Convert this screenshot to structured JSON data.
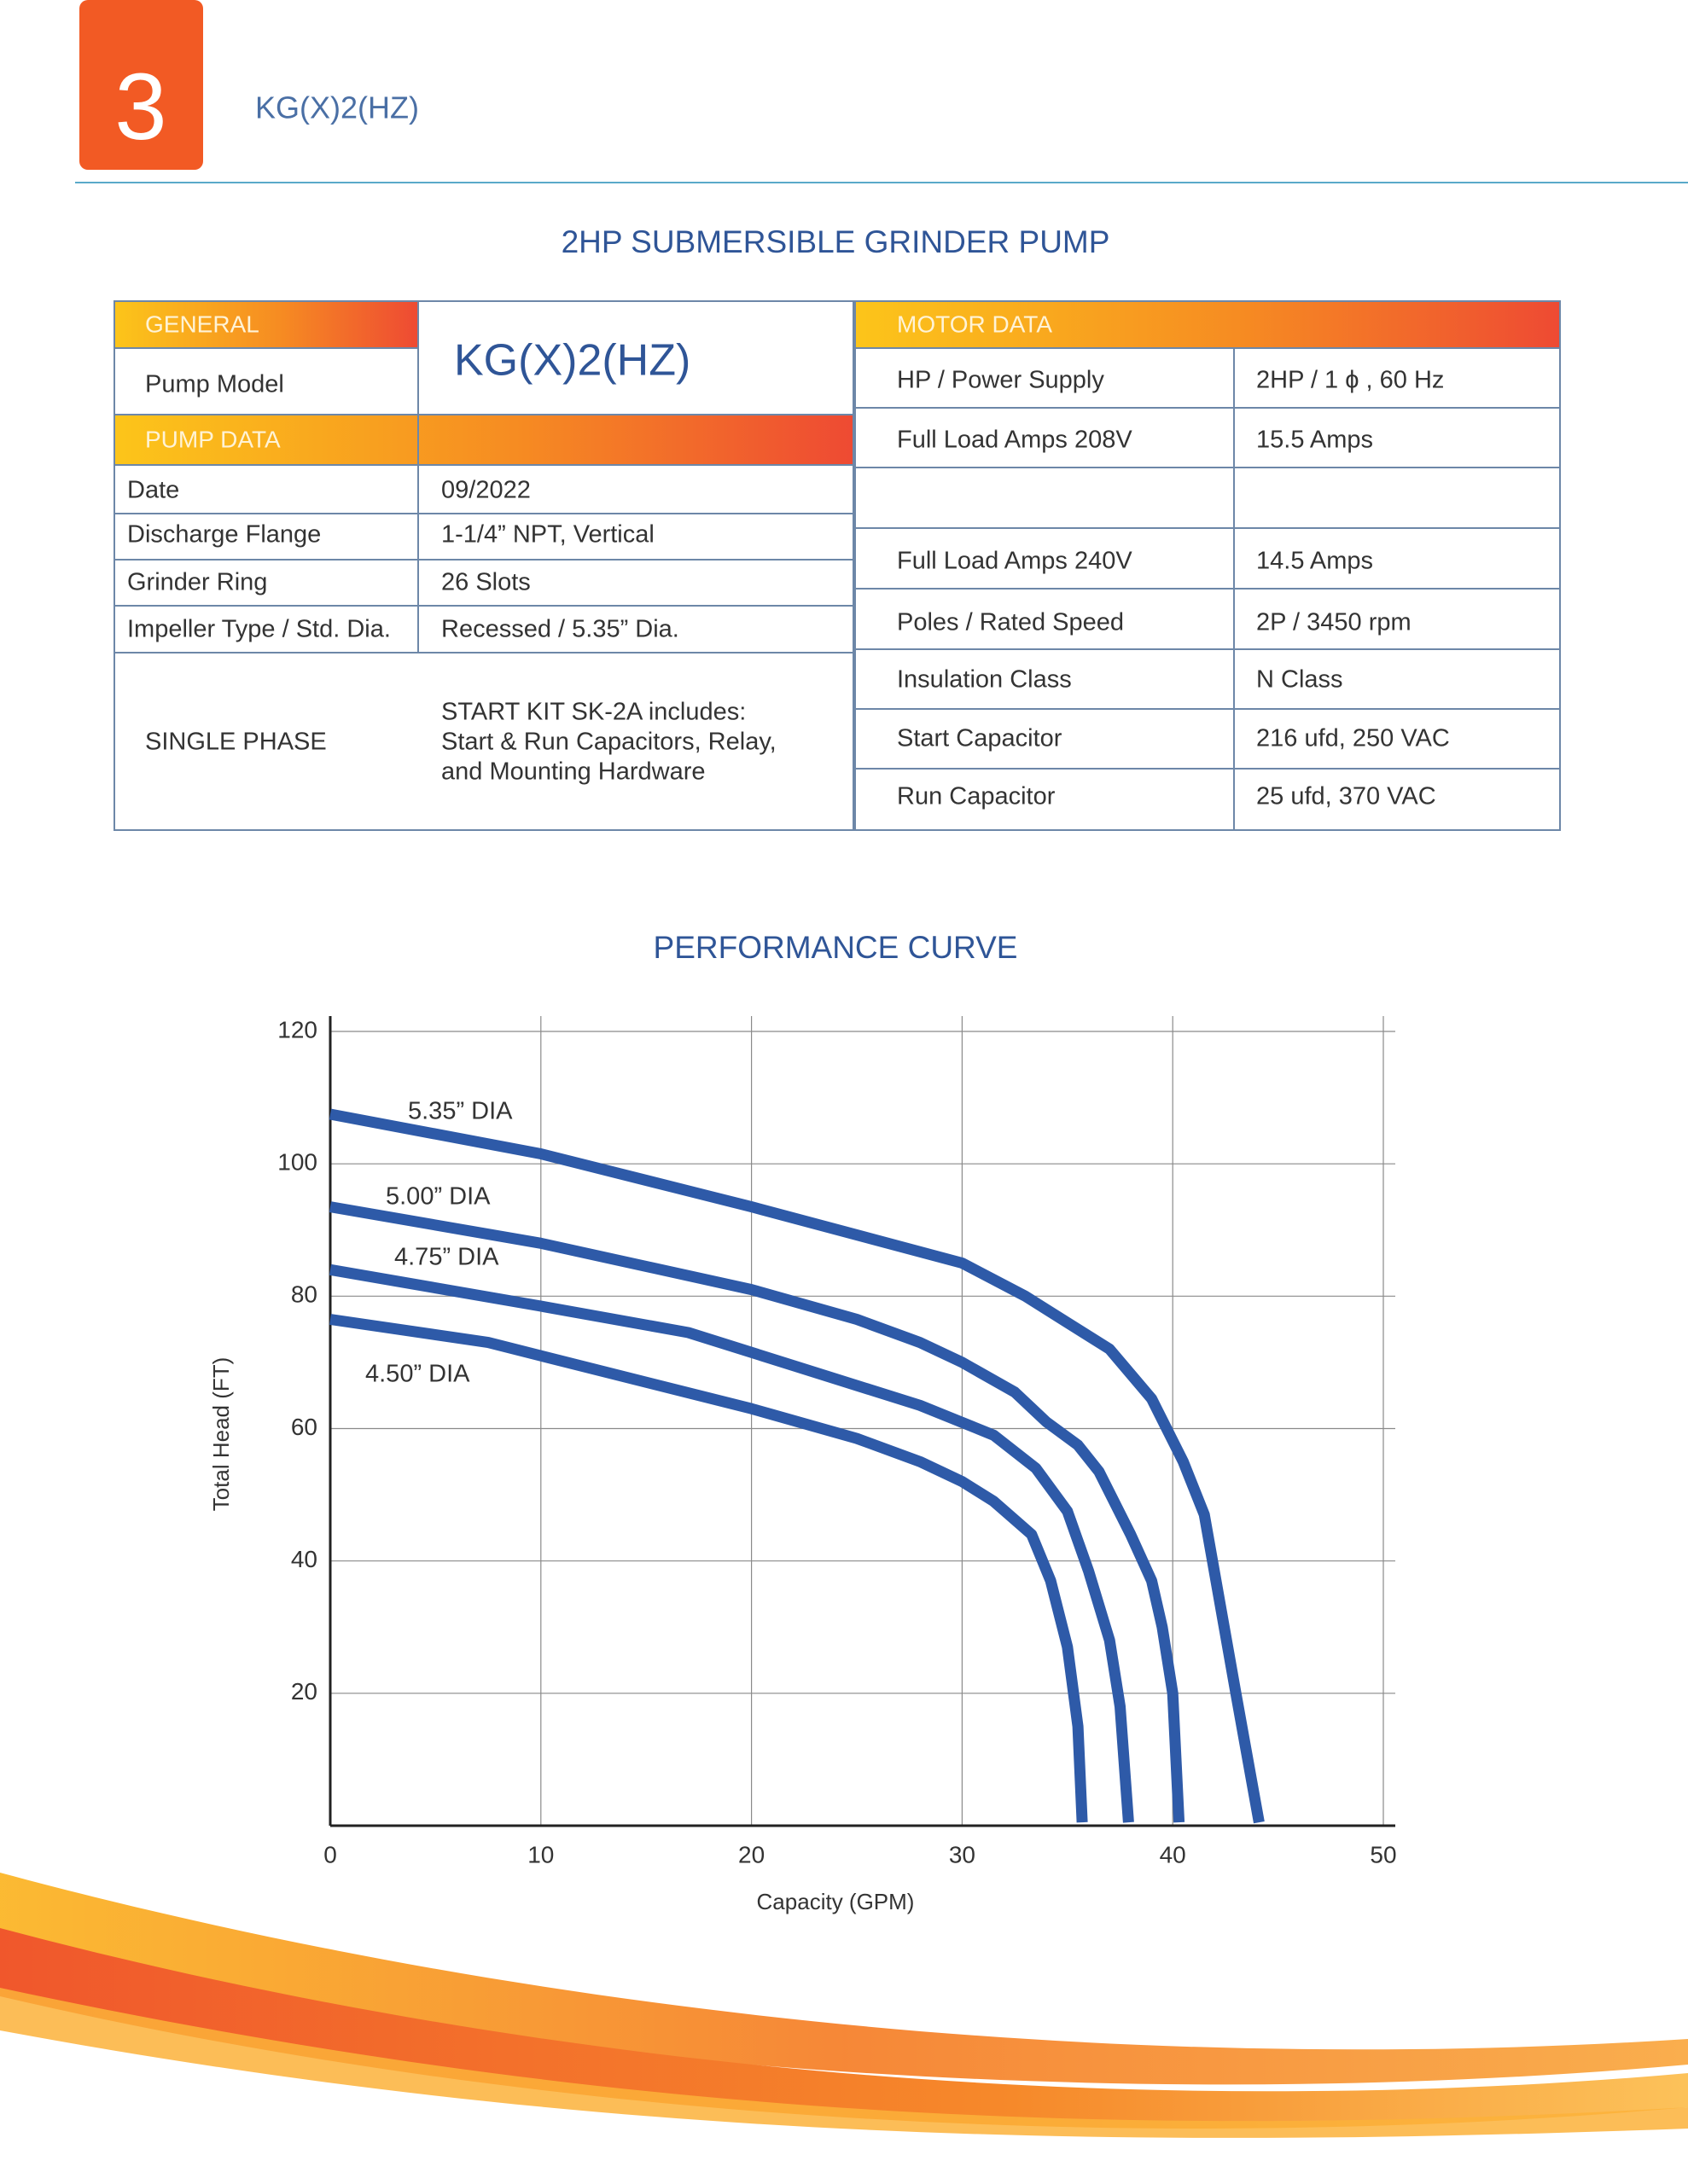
{
  "header": {
    "number": "3",
    "model": "KG(X)2(HZ)"
  },
  "title": "2HP SUBMERSIBLE GRINDER PUMP",
  "general": {
    "label": "GENERAL",
    "pump_model_label": "Pump Model",
    "pump_model": "KG(X)2(HZ)"
  },
  "pump_data": {
    "label": "PUMP DATA",
    "rows": [
      [
        "Date",
        "09/2022"
      ],
      [
        "Discharge Flange",
        "1-1/4” NPT, Vertical"
      ],
      [
        "Grinder Ring",
        "26 Slots"
      ],
      [
        "Impeller Type / Std. Dia.",
        "Recessed / 5.35” Dia."
      ]
    ],
    "single_phase_label": "SINGLE PHASE",
    "start_kit": [
      "START KIT SK-2A includes:",
      "Start & Run Capacitors, Relay,",
      "and Mounting Hardware"
    ]
  },
  "motor_data": {
    "label": "MOTOR DATA",
    "rows": [
      [
        "HP / Power Supply",
        "2HP / 1 ϕ , 60 Hz"
      ],
      [
        "Full Load Amps 208V",
        "15.5 Amps"
      ],
      [
        "Full Load Amps 240V",
        "14.5 Amps"
      ],
      [
        "Poles / Rated Speed",
        "2P / 3450 rpm"
      ],
      [
        "Insulation Class",
        "N Class"
      ],
      [
        "Start Capacitor",
        "216 ufd, 250 VAC"
      ],
      [
        "Run Capacitor",
        "25 ufd, 370 VAC"
      ]
    ]
  },
  "chart_data": {
    "type": "line",
    "title": "PERFORMANCE CURVE",
    "x_label": "Capacity (GPM)",
    "y_label": "Total Head (FT)",
    "xlim": [
      0,
      50
    ],
    "ylim": [
      0,
      120
    ],
    "xticks": [
      0,
      10,
      20,
      30,
      40,
      50
    ],
    "yticks": [
      20,
      40,
      60,
      80,
      100,
      120
    ],
    "grid": true,
    "series": [
      {
        "name": "5.35” DIA",
        "color": "#2e5aa8",
        "x": [
          0,
          10,
          20,
          30,
          33,
          35,
          37,
          39,
          40.5,
          41.5,
          43,
          44.1
        ],
        "y": [
          107.5,
          101.5,
          93.5,
          85,
          80,
          76,
          72,
          64.5,
          55,
          47,
          20,
          0.5
        ]
      },
      {
        "name": "5.00” DIA",
        "color": "#2e5aa8",
        "x": [
          0,
          10,
          20,
          25,
          28,
          30,
          32.5,
          34,
          35.5,
          36.5,
          38,
          39,
          39.5,
          40,
          40.3
        ],
        "y": [
          93.5,
          88,
          81,
          76.5,
          73,
          70,
          65.5,
          61,
          57.5,
          53.5,
          44,
          37,
          30,
          20,
          0.5
        ]
      },
      {
        "name": "4.75” DIA",
        "color": "#2e5aa8",
        "x": [
          0,
          10,
          17,
          22,
          28,
          31.5,
          33.5,
          35,
          36,
          37,
          37.5,
          37.9
        ],
        "y": [
          84,
          78.5,
          74.5,
          69.5,
          63.5,
          59,
          54,
          47.5,
          38.5,
          28,
          18,
          0.5
        ]
      },
      {
        "name": "4.50” DIA",
        "color": "#2e5aa8",
        "x": [
          0,
          7.5,
          10,
          20,
          25,
          28,
          30,
          31.5,
          33.3,
          34.2,
          35,
          35.5,
          35.7
        ],
        "y": [
          76.5,
          73,
          71,
          63,
          58.5,
          55,
          52,
          49,
          44,
          37,
          27,
          15,
          0.5
        ]
      }
    ]
  }
}
